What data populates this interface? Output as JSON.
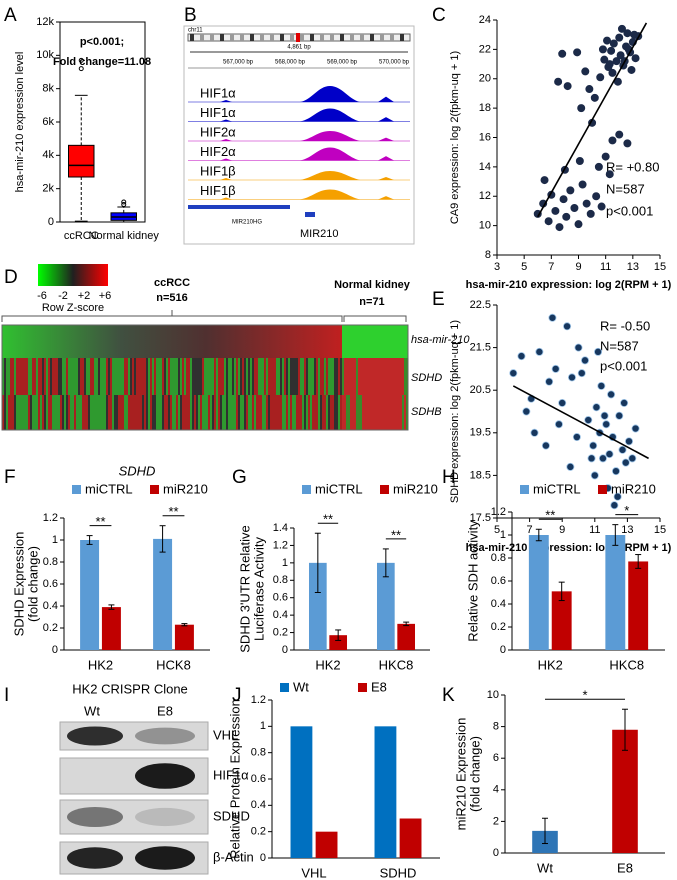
{
  "chart_data": [
    {
      "panel": "A",
      "type": "box",
      "frame": true,
      "ylabel": "hsa-mir-210 expression level",
      "annotations": [
        "p<0.001;",
        "Fold change=11.08"
      ],
      "categories": [
        "ccRCC",
        "Normal kidney"
      ],
      "boxes": [
        {
          "whislo": 50,
          "q1": 2700,
          "med": 3400,
          "q3": 4600,
          "whishi": 7600,
          "fliers": [
            9200,
            9700
          ],
          "color": "#ff0000"
        },
        {
          "whislo": 0,
          "q1": 100,
          "med": 300,
          "q3": 550,
          "whishi": 900,
          "fliers": [
            1050,
            1200
          ],
          "color": "#0000ff"
        }
      ],
      "ylim": [
        0,
        12000
      ],
      "yticks": [
        0,
        {
          "value": 2000,
          "label": "2k"
        },
        {
          "value": 4000,
          "label": "4k"
        },
        {
          "value": 6000,
          "label": "6k"
        },
        {
          "value": 8000,
          "label": "8k"
        },
        {
          "value": 10000,
          "label": "10k"
        },
        {
          "value": 12000,
          "label": "12k"
        }
      ]
    },
    {
      "panel": "C",
      "type": "scatter",
      "xlabel": "hsa-mir-210 expression:  log 2(RPM + 1)",
      "ylabel": "CA9 expression:  log 2(fpkm-uq + 1)",
      "annotations": [
        "R= +0.80",
        "N=587",
        "p<0.001"
      ],
      "color": "#1c2a48",
      "edgecolor": "#1c2a48",
      "x": [
        10.6,
        10.9,
        11.2,
        11.4,
        11.6,
        11.8,
        12.0,
        12.1,
        12.3,
        12.5,
        12.6,
        12.8,
        13.0,
        13.2,
        13.4,
        11.1,
        11.5,
        12.2,
        12.9,
        10.8,
        11.9,
        12.4,
        13.1,
        11.3,
        12.7,
        9.5,
        8.9,
        9.8,
        10.2,
        8.2,
        7.8,
        9.2,
        10.0,
        7.5,
        6.0,
        6.4,
        6.8,
        7.0,
        7.3,
        7.6,
        7.9,
        8.1,
        8.4,
        8.7,
        9.0,
        9.3,
        9.6,
        9.9,
        10.3,
        10.7,
        11.0,
        11.5,
        12.0,
        11.3,
        10.5,
        6.5,
        8.0,
        9.1,
        12.6
      ],
      "y": [
        20.1,
        21.3,
        20.8,
        21.9,
        22.4,
        21.2,
        22.8,
        21.6,
        20.9,
        22.2,
        23.1,
        21.8,
        22.5,
        21.4,
        22.9,
        22.6,
        20.4,
        23.4,
        20.6,
        22.0,
        19.8,
        21.2,
        23.0,
        21.0,
        22.0,
        20.5,
        21.8,
        19.3,
        18.7,
        19.5,
        21.7,
        18.0,
        17.0,
        19.8,
        10.8,
        11.5,
        10.3,
        12.1,
        11.0,
        9.9,
        11.8,
        10.6,
        12.4,
        11.2,
        10.1,
        12.8,
        11.5,
        10.8,
        12.0,
        11.3,
        14.7,
        15.8,
        16.2,
        13.5,
        14.0,
        13.1,
        13.8,
        14.4,
        15.6
      ],
      "fit": {
        "x": [
          6,
          14
        ],
        "y": [
          10.6,
          23.8
        ]
      },
      "xlim": [
        3,
        15
      ],
      "xticks": [
        3,
        5,
        7,
        9,
        11,
        13,
        15
      ],
      "ylim": [
        8,
        24
      ],
      "yticks": [
        8,
        10,
        12,
        14,
        16,
        18,
        20,
        22,
        24
      ]
    },
    {
      "panel": "E",
      "type": "scatter",
      "xlabel": "hsa-mir-210 expression:  log 2(RPM + 1)",
      "ylabel": "SDHD expression:  log 2(fpkm-uq + 1)",
      "annotations": [
        "R= -0.50",
        "N=587",
        "p<0.001"
      ],
      "color": "#17375e",
      "edgecolor": "#9dc3e6",
      "x": [
        10.6,
        10.9,
        11.1,
        11.3,
        11.5,
        11.7,
        11.9,
        12.1,
        12.3,
        12.5,
        12.7,
        12.9,
        13.1,
        13.3,
        11.0,
        11.8,
        12.4,
        12.0,
        11.4,
        12.8,
        13.5,
        10.8,
        12.2,
        11.6,
        6.0,
        6.5,
        7.1,
        7.6,
        8.2,
        8.6,
        9.0,
        9.3,
        9.6,
        9.9,
        10.2,
        7.3,
        8.0,
        8.8,
        6.8,
        10.0,
        9.5,
        10.4,
        8.4,
        11.2
      ],
      "y": [
        19.8,
        19.2,
        20.1,
        19.5,
        18.9,
        19.7,
        19.0,
        19.4,
        18.6,
        19.9,
        19.1,
        18.8,
        19.3,
        18.9,
        18.5,
        18.2,
        18.0,
        20.4,
        20.6,
        20.2,
        19.6,
        18.9,
        17.8,
        19.9,
        20.9,
        21.3,
        20.3,
        21.4,
        20.7,
        21.0,
        20.2,
        22.0,
        20.8,
        19.4,
        20.9,
        19.5,
        19.2,
        19.7,
        20.0,
        21.5,
        18.7,
        21.2,
        22.2,
        21.4
      ],
      "fit": {
        "x": [
          6,
          14.3
        ],
        "y": [
          20.6,
          18.9
        ]
      },
      "xlim": [
        5,
        15
      ],
      "xticks": [
        5,
        7,
        9,
        11,
        13,
        15
      ],
      "ylim": [
        17.5,
        22.5
      ],
      "yticks": [
        17.5,
        18.5,
        19.5,
        20.5,
        21.5,
        22.5
      ]
    },
    {
      "panel": "F",
      "type": "bar",
      "title": "SDHD",
      "ylabel": [
        "SDHD Expression",
        "(fold change)"
      ],
      "categories": [
        "HK2",
        "HCK8"
      ],
      "series": [
        {
          "name": "miCTRL",
          "color": "#5b9bd5",
          "values": [
            1,
            1.01
          ],
          "errors": [
            0.04,
            0.12
          ]
        },
        {
          "name": "miR210",
          "color": "#c00000",
          "values": [
            0.39,
            0.23
          ],
          "errors": [
            0.02,
            0.01
          ]
        }
      ],
      "significance": [
        "**",
        "**"
      ],
      "ylim": [
        0,
        1.2
      ],
      "yticks": [
        0,
        0.2,
        0.4,
        0.6,
        0.8,
        1,
        1.2
      ]
    },
    {
      "panel": "G",
      "type": "bar",
      "ylabel": [
        "SDHD 3'UTR Relative",
        "Luciferase Activity"
      ],
      "categories": [
        "HK2",
        "HKC8"
      ],
      "series": [
        {
          "name": "miCTRL",
          "color": "#5b9bd5",
          "values": [
            1,
            1
          ],
          "errors": [
            0.34,
            0.16
          ]
        },
        {
          "name": "miR210",
          "color": "#c00000",
          "values": [
            0.17,
            0.3
          ],
          "errors": [
            0.06,
            0.02
          ]
        }
      ],
      "significance": [
        "**",
        "**"
      ],
      "ylim": [
        0,
        1.4
      ],
      "yticks": [
        0,
        0.2,
        0.4,
        0.6,
        0.8,
        1,
        1.2,
        1.4
      ]
    },
    {
      "panel": "H",
      "type": "bar",
      "ylabel": [
        "Relative SDH activity"
      ],
      "categories": [
        "HK2",
        "HKC8"
      ],
      "series": [
        {
          "name": "miCTRL",
          "color": "#5b9bd5",
          "values": [
            1,
            1
          ],
          "errors": [
            0.05,
            0.09
          ]
        },
        {
          "name": "miR210",
          "color": "#c00000",
          "values": [
            0.51,
            0.77
          ],
          "errors": [
            0.08,
            0.06
          ]
        }
      ],
      "significance": [
        "**",
        "*"
      ],
      "ylim": [
        0,
        1.2
      ],
      "yticks": [
        0,
        0.2,
        0.4,
        0.6,
        0.8,
        1,
        1.2
      ]
    },
    {
      "panel": "J",
      "type": "bar",
      "ylabel": [
        "Relative Protein Expression"
      ],
      "categories": [
        "VHL",
        "SDHD"
      ],
      "series": [
        {
          "name": "Wt",
          "color": "#0070c0",
          "values": [
            1,
            1
          ]
        },
        {
          "name": "E8",
          "color": "#c00000",
          "values": [
            0.2,
            0.3
          ]
        }
      ],
      "ylim": [
        0,
        1.2
      ],
      "yticks": [
        0,
        0.2,
        0.4,
        0.6,
        0.8,
        1,
        1.2
      ]
    },
    {
      "panel": "K",
      "type": "bar",
      "ylabel": [
        "miR210 Expression",
        "(fold change)"
      ],
      "categories": [
        "Wt",
        "E8"
      ],
      "values": [
        1.4,
        7.8
      ],
      "errors": [
        0.8,
        1.3
      ],
      "colors": [
        "#2e75b6",
        "#c00000"
      ],
      "significance": [
        "*"
      ],
      "ylim": [
        0,
        10
      ],
      "yticks": [
        0,
        2,
        4,
        6,
        8,
        10
      ]
    }
  ],
  "genome_track": {
    "panel": "B",
    "chromosome": "chr11",
    "span": "4,861 bp",
    "coordinates": [
      "567,000 bp",
      "568,000 bp",
      "569,000 bp",
      "570,000 bp"
    ],
    "tracks": [
      {
        "name": "HIF1α",
        "color": "#0000c8"
      },
      {
        "name": "HIF1α",
        "color": "#0000c8"
      },
      {
        "name": "HIF2α",
        "color": "#c000c0"
      },
      {
        "name": "HIF2α",
        "color": "#c000c0"
      },
      {
        "name": "HIF1β",
        "color": "#f5a000"
      },
      {
        "name": "HIF1β",
        "color": "#f5a000"
      }
    ],
    "genes": [
      "MIR210HG",
      "MIR210"
    ]
  },
  "heatmap": {
    "panel": "D",
    "color_key": {
      "title": "Row Z-score",
      "ticks": [
        "-6",
        "-2",
        "+2",
        "+6"
      ]
    },
    "groups": [
      {
        "name": "ccRCC",
        "n": "n=516"
      },
      {
        "name": "Normal kidney",
        "n": "n=71"
      }
    ],
    "rows": [
      "hsa-mir-210",
      "SDHD",
      "SDHB"
    ]
  },
  "western_blot": {
    "panel": "I",
    "title": "HK2 CRISPR Clone",
    "lanes": [
      "Wt",
      "E8"
    ],
    "bands": [
      "VHL",
      "HIF1α",
      "SDHD",
      "β-Actin"
    ]
  }
}
